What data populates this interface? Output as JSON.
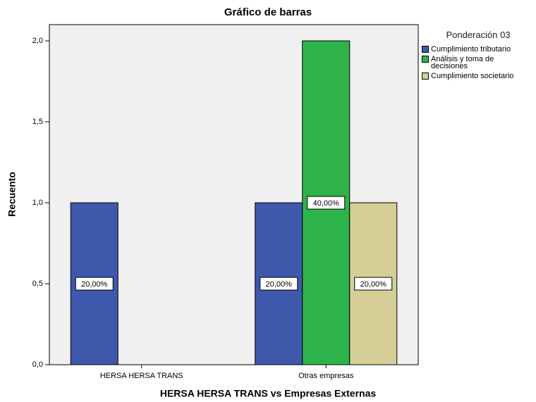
{
  "chart_data": {
    "type": "bar",
    "title": "Gráfico de barras",
    "x_label": "HERSA HERSA TRANS vs Empresas Externas",
    "y_label": "Recuento",
    "legend_title": "Ponderación 03",
    "categories": [
      "HERSA HERSA TRANS",
      "Otras empresas"
    ],
    "series": [
      {
        "name": "Cumplimiento tributario",
        "color": "#3e58ac",
        "values": [
          1,
          1
        ],
        "value_labels": [
          "20,00%",
          "20,00%"
        ]
      },
      {
        "name": "Análisis y toma de decisiones",
        "color": "#2db34a",
        "values": [
          null,
          2
        ],
        "value_labels": [
          null,
          "40,00%"
        ]
      },
      {
        "name": "Cumplimiento societario",
        "color": "#d5cf96",
        "values": [
          null,
          1
        ],
        "value_labels": [
          null,
          "20,00%"
        ]
      }
    ],
    "ylim": [
      0,
      2.1
    ],
    "yticks": [
      {
        "value": 0,
        "label": "0,0"
      },
      {
        "value": 0.5,
        "label": "0,5"
      },
      {
        "value": 1,
        "label": "1,0"
      },
      {
        "value": 1.5,
        "label": "1,5"
      },
      {
        "value": 2,
        "label": "2,0"
      }
    ],
    "legend_position": "right"
  }
}
